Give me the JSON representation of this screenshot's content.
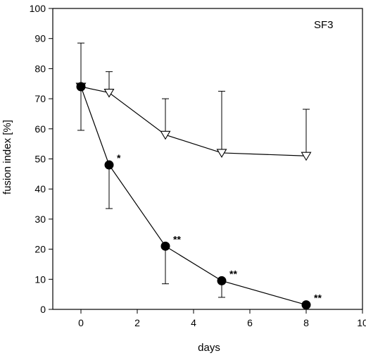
{
  "chart_data": {
    "type": "line",
    "title": "",
    "annotation": "SF3",
    "xlabel": "days",
    "ylabel": "fusion index [%]",
    "xlim": [
      -1,
      10
    ],
    "ylim": [
      0,
      100
    ],
    "xticks": [
      0,
      2,
      4,
      6,
      8,
      10
    ],
    "yticks": [
      0,
      10,
      20,
      30,
      40,
      50,
      60,
      70,
      80,
      90,
      100
    ],
    "grid": false,
    "legend": "none",
    "series": [
      {
        "marker": "open-triangle-down",
        "color": "#000000",
        "x": [
          0,
          1,
          3,
          5,
          8
        ],
        "y": [
          74,
          72,
          58,
          52,
          51
        ],
        "error_upper": [
          88.5,
          79,
          70,
          72.5,
          66.5
        ],
        "error_lower": [
          59.5,
          null,
          null,
          null,
          null
        ],
        "significance": [
          "",
          "",
          "",
          "",
          ""
        ]
      },
      {
        "marker": "filled-circle",
        "color": "#000000",
        "x": [
          0,
          1,
          3,
          5,
          8
        ],
        "y": [
          74,
          48,
          21,
          9.5,
          1.5
        ],
        "error_upper": [
          null,
          null,
          null,
          null,
          null
        ],
        "error_lower": [
          null,
          33.5,
          8.5,
          4,
          null
        ],
        "significance": [
          "",
          "*",
          "**",
          "**",
          "**"
        ]
      }
    ]
  }
}
